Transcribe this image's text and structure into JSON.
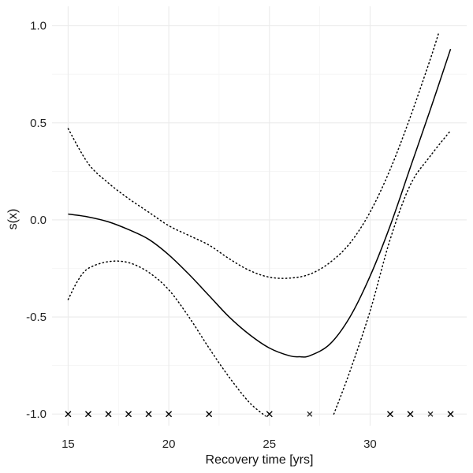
{
  "chart_data": {
    "type": "line",
    "xlabel": "Recovery time [yrs]",
    "ylabel": "s(x)",
    "xlim": [
      14.2,
      34.8
    ],
    "ylim": [
      -1.06,
      1.1
    ],
    "x_ticks": [
      15,
      20,
      25,
      30
    ],
    "x_tick_labels": [
      "15",
      "20",
      "25",
      "30"
    ],
    "y_ticks": [
      1.0,
      0.5,
      0.0,
      -0.5,
      -1.0
    ],
    "y_tick_labels": [
      "1.0",
      "0.5",
      "0.0",
      "-0.5",
      "-1.0"
    ],
    "grid": true,
    "series": [
      {
        "role": "fit",
        "style": "solid",
        "x": [
          15,
          16,
          17,
          18,
          19,
          20,
          21,
          22,
          23,
          24,
          25,
          26,
          26.5,
          27,
          28,
          29,
          30,
          31,
          32,
          33,
          34
        ],
        "y": [
          0.03,
          0.015,
          -0.01,
          -0.05,
          -0.1,
          -0.18,
          -0.28,
          -0.39,
          -0.5,
          -0.59,
          -0.66,
          -0.7,
          -0.705,
          -0.7,
          -0.64,
          -0.5,
          -0.29,
          -0.03,
          0.27,
          0.57,
          0.88
        ]
      },
      {
        "role": "upper-band",
        "style": "dotted",
        "x": [
          15,
          16,
          17,
          18,
          19,
          20,
          21,
          22,
          23,
          24,
          25,
          26,
          27,
          28,
          29,
          30,
          31,
          32,
          33,
          33.4
        ],
        "y": [
          0.47,
          0.29,
          0.19,
          0.11,
          0.04,
          -0.03,
          -0.08,
          -0.13,
          -0.2,
          -0.26,
          -0.295,
          -0.3,
          -0.28,
          -0.22,
          -0.12,
          0.04,
          0.26,
          0.53,
          0.83,
          0.96
        ]
      },
      {
        "role": "lower-band",
        "style": "dotted",
        "x": [
          15,
          15.5,
          16,
          17,
          18,
          19,
          20,
          21,
          22,
          23,
          24,
          24.8
        ],
        "y": [
          -0.41,
          -0.31,
          -0.25,
          -0.215,
          -0.22,
          -0.27,
          -0.36,
          -0.5,
          -0.66,
          -0.81,
          -0.94,
          -1.01
        ]
      },
      {
        "role": "lower-band",
        "style": "dotted",
        "x": [
          28.2,
          29,
          30,
          31,
          32,
          33,
          34
        ],
        "y": [
          -1.0,
          -0.78,
          -0.47,
          -0.1,
          0.18,
          0.33,
          0.46
        ]
      }
    ],
    "rug": {
      "y": -1.0,
      "x": [
        15,
        16,
        17,
        18,
        19,
        20,
        22,
        25,
        27,
        31,
        32,
        33,
        34
      ],
      "weights": [
        1,
        1,
        1,
        1,
        1,
        1,
        1,
        1,
        0.6,
        1,
        1,
        0.6,
        1
      ]
    }
  }
}
